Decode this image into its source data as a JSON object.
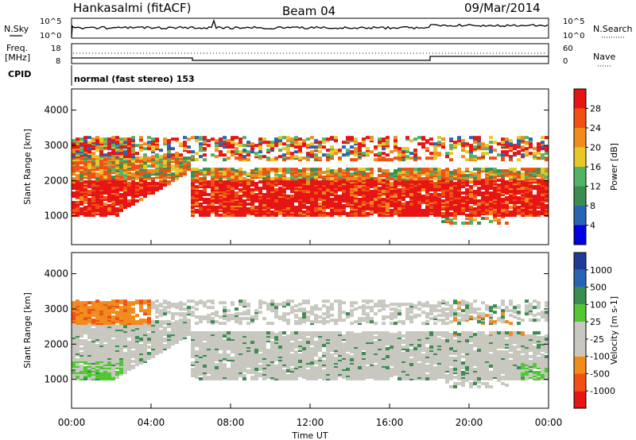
{
  "header": {
    "station": "Hankasalmi (fitACF)",
    "beam": "Beam 04",
    "date": "09/Mar/2014"
  },
  "top_panels": {
    "nsky_label": "N.Sky",
    "nsky_ticks": [
      "10^5",
      "10^0"
    ],
    "nsearch_label": "N.Search",
    "nsearch_ticks": [
      "10^5",
      "10^0"
    ],
    "freq_label_1": "Freq.",
    "freq_label_2": "[MHz]",
    "freq_ticks": [
      "18",
      "8"
    ],
    "nave_label": "Nave",
    "nave_ticks": [
      "60",
      "0"
    ],
    "cpid_label": "CPID",
    "cpid_text": "normal (fast stereo) 153"
  },
  "chart_data": [
    {
      "type": "heatmap",
      "title": "",
      "xlabel": "Time UT",
      "ylabel": "Slant Range [km]",
      "colorbar_label": "Power [dB]",
      "x_ticks": [
        "00:00",
        "04:00",
        "08:00",
        "12:00",
        "16:00",
        "20:00",
        "00:00"
      ],
      "xlim_hours": [
        0,
        24
      ],
      "y_ticks": [
        1000,
        2000,
        3000,
        4000
      ],
      "ylim": [
        180,
        4600
      ],
      "colorbar_ticks": [
        "28",
        "24",
        "20",
        "16",
        "12",
        "8",
        "4"
      ],
      "colorbar_range": [
        0,
        32
      ],
      "colors": [
        "#0000e0",
        "#2864b4",
        "#3c8c50",
        "#50b464",
        "#e6c828",
        "#f08c1e",
        "#f05014",
        "#e61414"
      ]
    },
    {
      "type": "heatmap",
      "title": "",
      "xlabel": "Time UT",
      "ylabel": "Slant Range [km]",
      "colorbar_label": "Velocity [m s-1]",
      "x_ticks": [
        "00:00",
        "04:00",
        "08:00",
        "12:00",
        "16:00",
        "20:00",
        "00:00"
      ],
      "xlim_hours": [
        0,
        24
      ],
      "y_ticks": [
        1000,
        2000,
        3000,
        4000
      ],
      "ylim": [
        180,
        4600
      ],
      "colorbar_ticks": [
        "1000",
        "500",
        "100",
        "25",
        "-25",
        "-100",
        "-500",
        "-1000"
      ],
      "colors": [
        "#e61414",
        "#f05014",
        "#f08c1e",
        "#c8c8c0",
        "#c8c8c0",
        "#50c832",
        "#3c8c50",
        "#2864b4",
        "#1e3c96"
      ]
    }
  ]
}
